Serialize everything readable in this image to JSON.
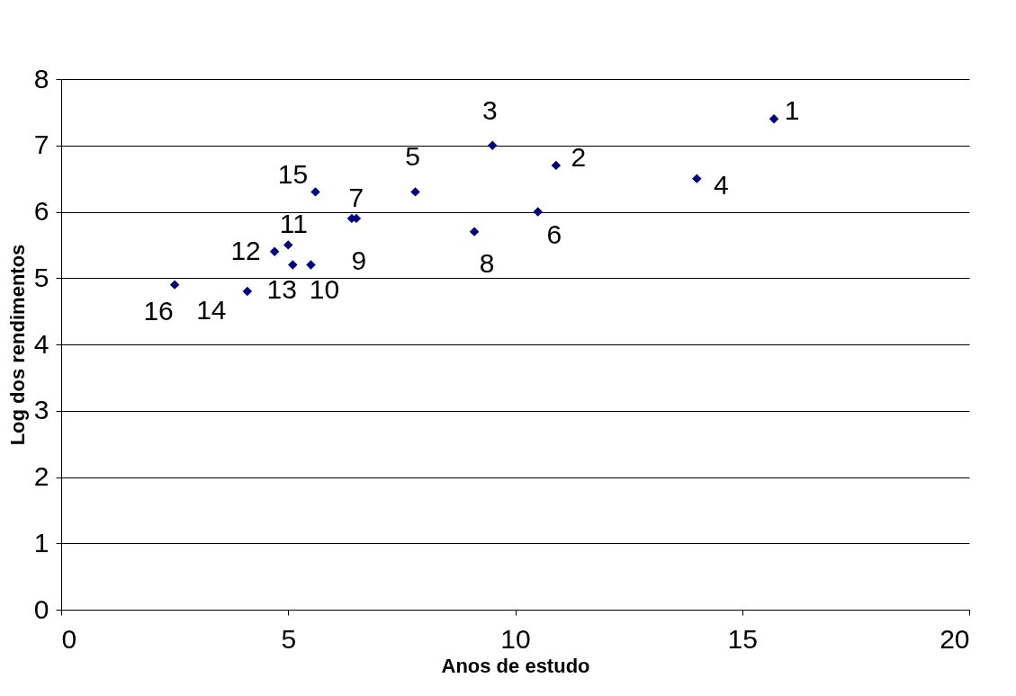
{
  "chart_data": {
    "type": "scatter",
    "xlabel": "Anos de estudo",
    "ylabel": "Log dos rendimentos",
    "x": [
      15.7,
      10.9,
      9.5,
      14.0,
      7.8,
      10.5,
      6.5,
      9.1,
      6.4,
      5.5,
      5.0,
      4.7,
      5.1,
      4.1,
      5.6,
      2.5
    ],
    "series": [
      {
        "color": "#000080",
        "values": [
          7.4,
          6.7,
          7.0,
          6.5,
          6.3,
          6.0,
          5.9,
          5.7,
          5.9,
          5.2,
          5.5,
          5.4,
          5.2,
          4.8,
          6.3,
          4.9
        ]
      }
    ],
    "annotations": [
      {
        "text": "1",
        "x": 15.7,
        "y": 7.4
      },
      {
        "text": "2",
        "x": 10.9,
        "y": 6.7
      },
      {
        "text": "3",
        "x": 9.5,
        "y": 7.0
      },
      {
        "text": "4",
        "x": 14.0,
        "y": 6.5
      },
      {
        "text": "5",
        "x": 7.8,
        "y": 6.3
      },
      {
        "text": "6",
        "x": 10.5,
        "y": 6.0
      },
      {
        "text": "7",
        "x": 6.5,
        "y": 5.9
      },
      {
        "text": "8",
        "x": 9.1,
        "y": 5.7
      },
      {
        "text": "9",
        "x": 6.4,
        "y": 5.9
      },
      {
        "text": "10",
        "x": 5.5,
        "y": 5.2
      },
      {
        "text": "11",
        "x": 5.0,
        "y": 5.5
      },
      {
        "text": "12",
        "x": 4.7,
        "y": 5.4
      },
      {
        "text": "13",
        "x": 5.1,
        "y": 5.2
      },
      {
        "text": "14",
        "x": 4.1,
        "y": 4.8
      },
      {
        "text": "15",
        "x": 5.6,
        "y": 6.3
      },
      {
        "text": "16",
        "x": 2.5,
        "y": 4.9
      }
    ],
    "xlim": [
      0,
      20
    ],
    "xticks": [
      0,
      5,
      10,
      15,
      20
    ],
    "ylim": [
      0,
      8
    ],
    "yticks": [
      0,
      1,
      2,
      3,
      4,
      5,
      6,
      7,
      8
    ],
    "grid": "y",
    "marker": "diamond"
  }
}
